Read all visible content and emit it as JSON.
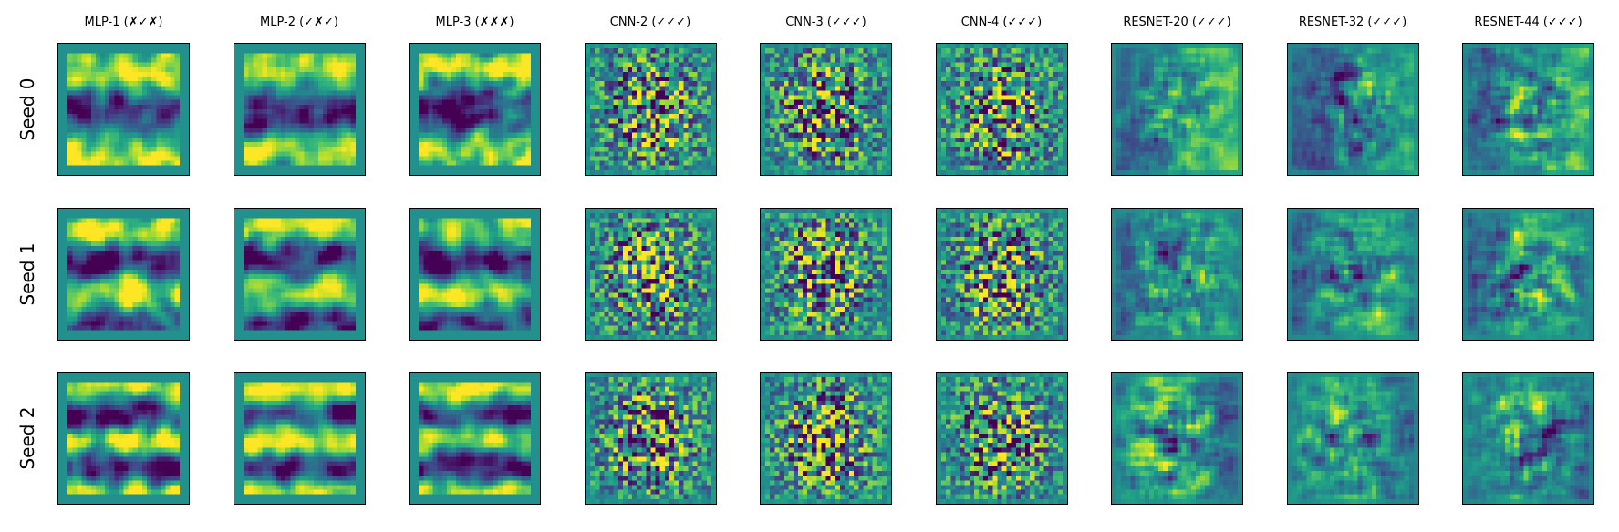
{
  "chart_data": {
    "type": "heatmap",
    "colormap": "viridis",
    "axes_ticks": "none",
    "columns": [
      "MLP-1 (✗✓✗)",
      "MLP-2 (✓✗✓)",
      "MLP-3 (✗✗✗)",
      "CNN-2 (✓✓✓)",
      "CNN-3 (✓✓✓)",
      "CNN-4 (✓✓✓)",
      "RESNET-20 (✓✓✓)",
      "RESNET-32 (✓✓✓)",
      "RESNET-44 (✓✓✓)"
    ],
    "rows": [
      "Seed 0",
      "Seed 1",
      "Seed 2"
    ],
    "panel_resolution": 28,
    "value_range": [
      0,
      1
    ]
  }
}
